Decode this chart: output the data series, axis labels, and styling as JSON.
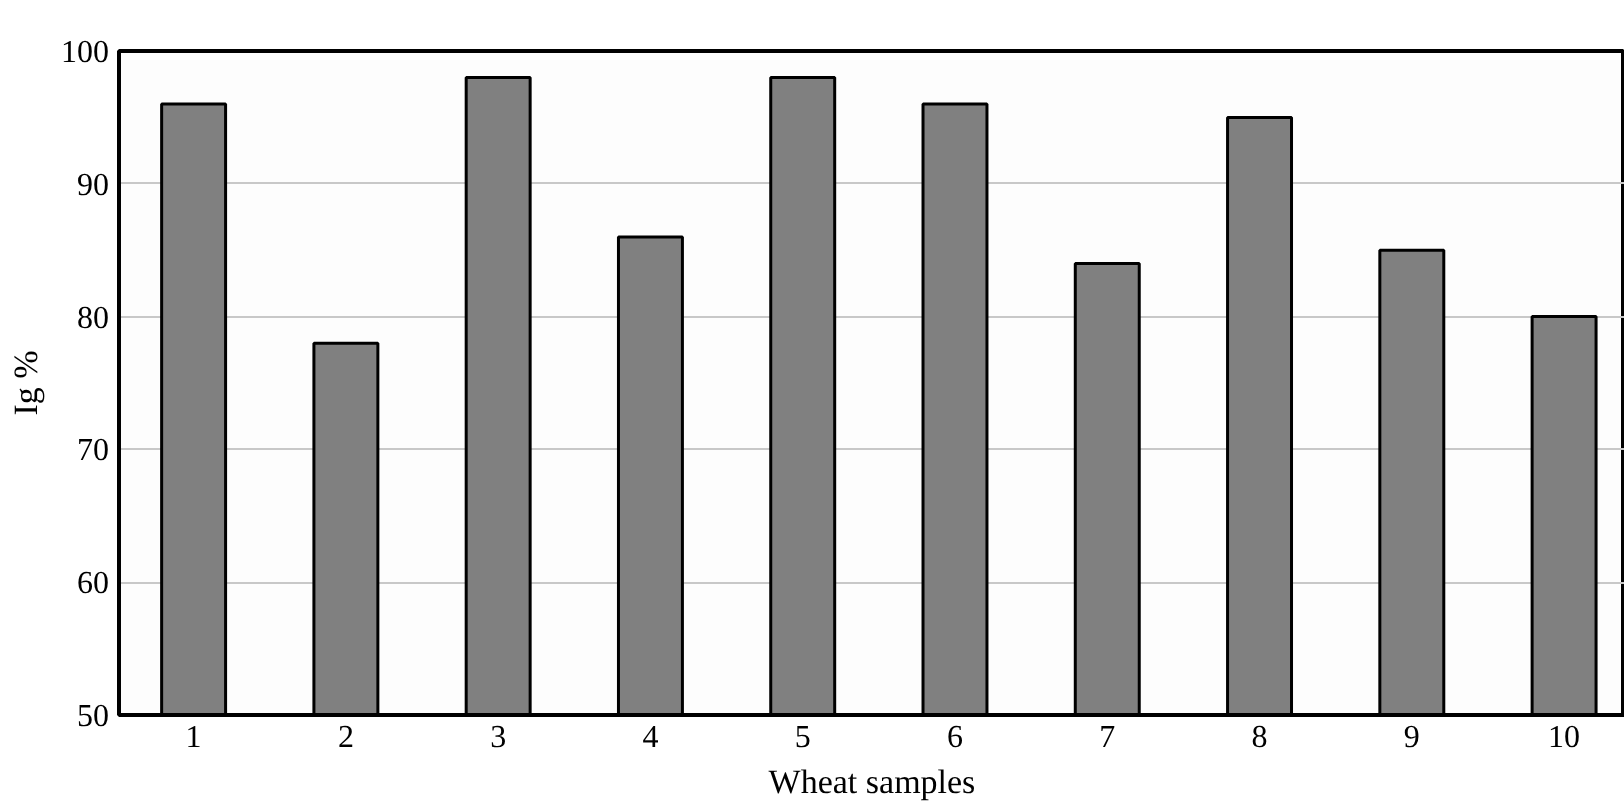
{
  "chart_data": {
    "type": "bar",
    "xlabel": "Wheat samples",
    "ylabel": "Ig %",
    "categories": [
      "1",
      "2",
      "3",
      "4",
      "5",
      "6",
      "7",
      "8",
      "9",
      "10"
    ],
    "values": [
      96,
      78,
      98,
      86,
      98,
      96,
      84,
      95,
      85,
      80
    ],
    "color": "#808080",
    "ylim": [
      50,
      100
    ],
    "yticks": [
      50,
      60,
      70,
      80,
      90,
      100
    ],
    "grid": "y"
  }
}
